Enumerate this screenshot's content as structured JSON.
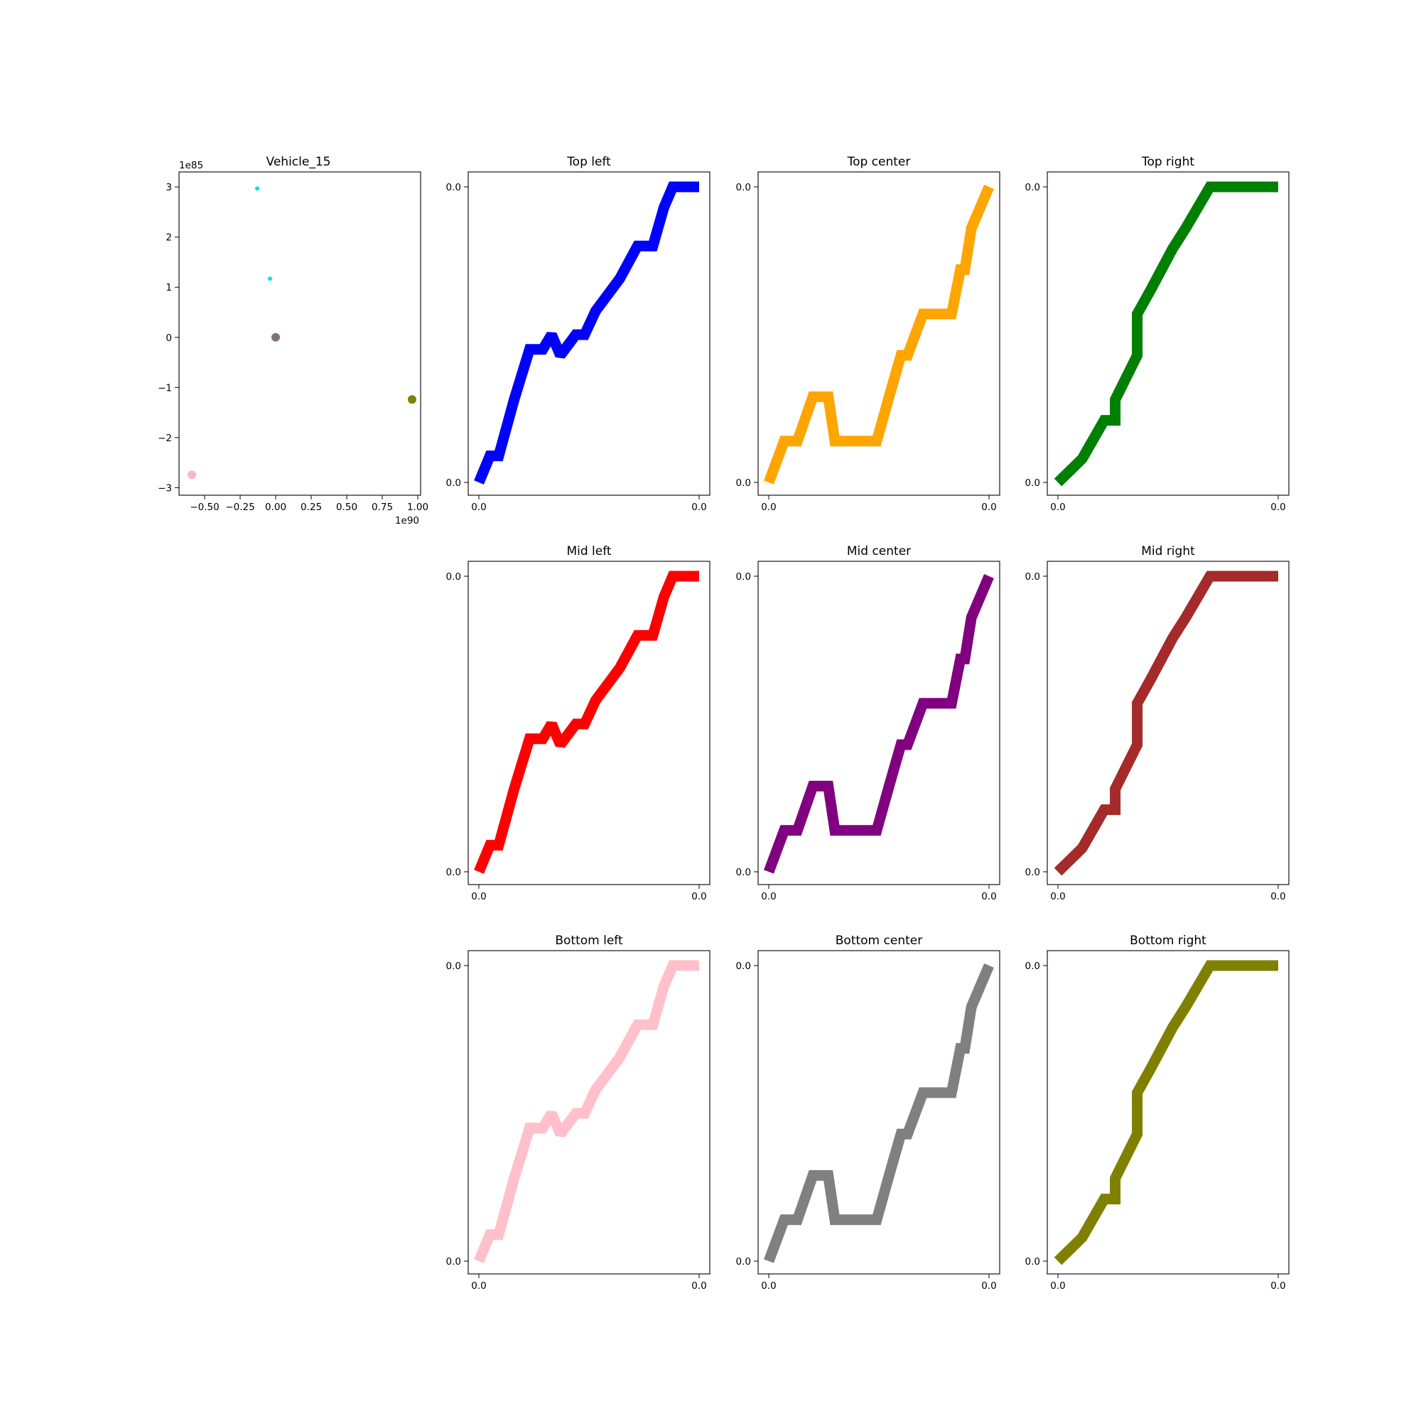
{
  "chart_data": [
    {
      "type": "scatter",
      "title": "Vehicle_15",
      "x_exponent_label": "1e90",
      "y_exponent_label": "1e85",
      "xlim": [
        -0.68,
        1.02
      ],
      "ylim": [
        -3.15,
        3.3
      ],
      "x_ticks": [
        -0.5,
        -0.25,
        0.0,
        0.25,
        0.5,
        0.75,
        1.0
      ],
      "x_tick_labels": [
        "−0.50",
        "−0.25",
        "0.00",
        "0.25",
        "0.50",
        "0.75",
        "1.00"
      ],
      "y_ticks": [
        -3,
        -2,
        -1,
        0,
        1,
        2,
        3
      ],
      "y_tick_labels": [
        "−3",
        "−2",
        "−1",
        "0",
        "1",
        "2",
        "3"
      ],
      "points": [
        {
          "x": -0.13,
          "y": 2.97,
          "color": "#00e5ee",
          "size": "small"
        },
        {
          "x": -0.04,
          "y": 1.17,
          "color": "#00e5ee",
          "size": "small"
        },
        {
          "x": 0.0,
          "y": 0.0,
          "color": "#7f7274",
          "size": "large"
        },
        {
          "x": 0.96,
          "y": -1.24,
          "color": "#808000",
          "size": "large"
        },
        {
          "x": -0.59,
          "y": -2.74,
          "color": "#ffb6c1",
          "size": "large"
        }
      ]
    },
    {
      "type": "line",
      "title": "Top left",
      "color": "#0000ff",
      "x_tick_labels": [
        "0.0",
        "0.0"
      ],
      "y_tick_labels": [
        "0.0",
        "0.0"
      ],
      "shape": "A",
      "x": [
        0,
        0.05,
        0.09,
        0.16,
        0.23,
        0.29,
        0.33,
        0.37,
        0.44,
        0.48,
        0.53,
        0.64,
        0.72,
        0.79,
        0.84,
        0.88,
        1.0
      ],
      "y": [
        0,
        0.09,
        0.09,
        0.28,
        0.45,
        0.45,
        0.5,
        0.43,
        0.5,
        0.5,
        0.58,
        0.69,
        0.8,
        0.8,
        0.93,
        1.0,
        1.0
      ]
    },
    {
      "type": "line",
      "title": "Top center",
      "color": "#ffa500",
      "x_tick_labels": [
        "0.0",
        "0.0"
      ],
      "y_tick_labels": [
        "0.0",
        "0.0"
      ],
      "shape": "B",
      "x": [
        0,
        0.07,
        0.13,
        0.2,
        0.27,
        0.3,
        0.33,
        0.49,
        0.55,
        0.6,
        0.63,
        0.7,
        0.83,
        0.87,
        0.89,
        0.92,
        1.0
      ],
      "y": [
        0,
        0.14,
        0.14,
        0.29,
        0.29,
        0.14,
        0.14,
        0.14,
        0.3,
        0.43,
        0.43,
        0.57,
        0.57,
        0.72,
        0.72,
        0.86,
        1.0
      ]
    },
    {
      "type": "line",
      "title": "Top right",
      "color": "#008000",
      "x_tick_labels": [
        "0.0",
        "0.0"
      ],
      "y_tick_labels": [
        "0.0",
        "0.0"
      ],
      "shape": "C",
      "x": [
        0,
        0.11,
        0.21,
        0.26,
        0.26,
        0.36,
        0.36,
        0.42,
        0.52,
        0.58,
        0.69,
        1.0
      ],
      "y": [
        0,
        0.08,
        0.21,
        0.21,
        0.28,
        0.43,
        0.57,
        0.65,
        0.79,
        0.86,
        1.0,
        1.0
      ]
    },
    {
      "type": "line",
      "title": "Mid left",
      "color": "#ff0000",
      "x_tick_labels": [
        "0.0",
        "0.0"
      ],
      "y_tick_labels": [
        "0.0",
        "0.0"
      ],
      "shape": "A",
      "x": [
        0,
        0.05,
        0.09,
        0.16,
        0.23,
        0.29,
        0.33,
        0.37,
        0.44,
        0.48,
        0.53,
        0.64,
        0.72,
        0.79,
        0.84,
        0.88,
        1.0
      ],
      "y": [
        0,
        0.09,
        0.09,
        0.28,
        0.45,
        0.45,
        0.5,
        0.43,
        0.5,
        0.5,
        0.58,
        0.69,
        0.8,
        0.8,
        0.93,
        1.0,
        1.0
      ]
    },
    {
      "type": "line",
      "title": "Mid center",
      "color": "#800080",
      "x_tick_labels": [
        "0.0",
        "0.0"
      ],
      "y_tick_labels": [
        "0.0",
        "0.0"
      ],
      "shape": "B",
      "x": [
        0,
        0.07,
        0.13,
        0.2,
        0.27,
        0.3,
        0.33,
        0.49,
        0.55,
        0.6,
        0.63,
        0.7,
        0.83,
        0.87,
        0.89,
        0.92,
        1.0
      ],
      "y": [
        0,
        0.14,
        0.14,
        0.29,
        0.29,
        0.14,
        0.14,
        0.14,
        0.3,
        0.43,
        0.43,
        0.57,
        0.57,
        0.72,
        0.72,
        0.86,
        1.0
      ]
    },
    {
      "type": "line",
      "title": "Mid right",
      "color": "#a52a2a",
      "x_tick_labels": [
        "0.0",
        "0.0"
      ],
      "y_tick_labels": [
        "0.0",
        "0.0"
      ],
      "shape": "C",
      "x": [
        0,
        0.11,
        0.21,
        0.26,
        0.26,
        0.36,
        0.36,
        0.42,
        0.52,
        0.58,
        0.69,
        1.0
      ],
      "y": [
        0,
        0.08,
        0.21,
        0.21,
        0.28,
        0.43,
        0.57,
        0.65,
        0.79,
        0.86,
        1.0,
        1.0
      ]
    },
    {
      "type": "line",
      "title": "Bottom left",
      "color": "#ffc0cb",
      "x_tick_labels": [
        "0.0",
        "0.0"
      ],
      "y_tick_labels": [
        "0.0",
        "0.0"
      ],
      "shape": "A",
      "x": [
        0,
        0.05,
        0.09,
        0.16,
        0.23,
        0.29,
        0.33,
        0.37,
        0.44,
        0.48,
        0.53,
        0.64,
        0.72,
        0.79,
        0.84,
        0.88,
        1.0
      ],
      "y": [
        0,
        0.09,
        0.09,
        0.28,
        0.45,
        0.45,
        0.5,
        0.43,
        0.5,
        0.5,
        0.58,
        0.69,
        0.8,
        0.8,
        0.93,
        1.0,
        1.0
      ]
    },
    {
      "type": "line",
      "title": "Bottom center",
      "color": "#808080",
      "x_tick_labels": [
        "0.0",
        "0.0"
      ],
      "y_tick_labels": [
        "0.0",
        "0.0"
      ],
      "shape": "B",
      "x": [
        0,
        0.07,
        0.13,
        0.2,
        0.27,
        0.3,
        0.33,
        0.49,
        0.55,
        0.6,
        0.63,
        0.7,
        0.83,
        0.87,
        0.89,
        0.92,
        1.0
      ],
      "y": [
        0,
        0.14,
        0.14,
        0.29,
        0.29,
        0.14,
        0.14,
        0.14,
        0.3,
        0.43,
        0.43,
        0.57,
        0.57,
        0.72,
        0.72,
        0.86,
        1.0
      ]
    },
    {
      "type": "line",
      "title": "Bottom right",
      "color": "#808000",
      "x_tick_labels": [
        "0.0",
        "0.0"
      ],
      "y_tick_labels": [
        "0.0",
        "0.0"
      ],
      "shape": "C",
      "x": [
        0,
        0.11,
        0.21,
        0.26,
        0.26,
        0.36,
        0.36,
        0.42,
        0.52,
        0.58,
        0.69,
        1.0
      ],
      "y": [
        0,
        0.08,
        0.21,
        0.21,
        0.28,
        0.43,
        0.57,
        0.65,
        0.79,
        0.86,
        1.0,
        1.0
      ]
    }
  ]
}
